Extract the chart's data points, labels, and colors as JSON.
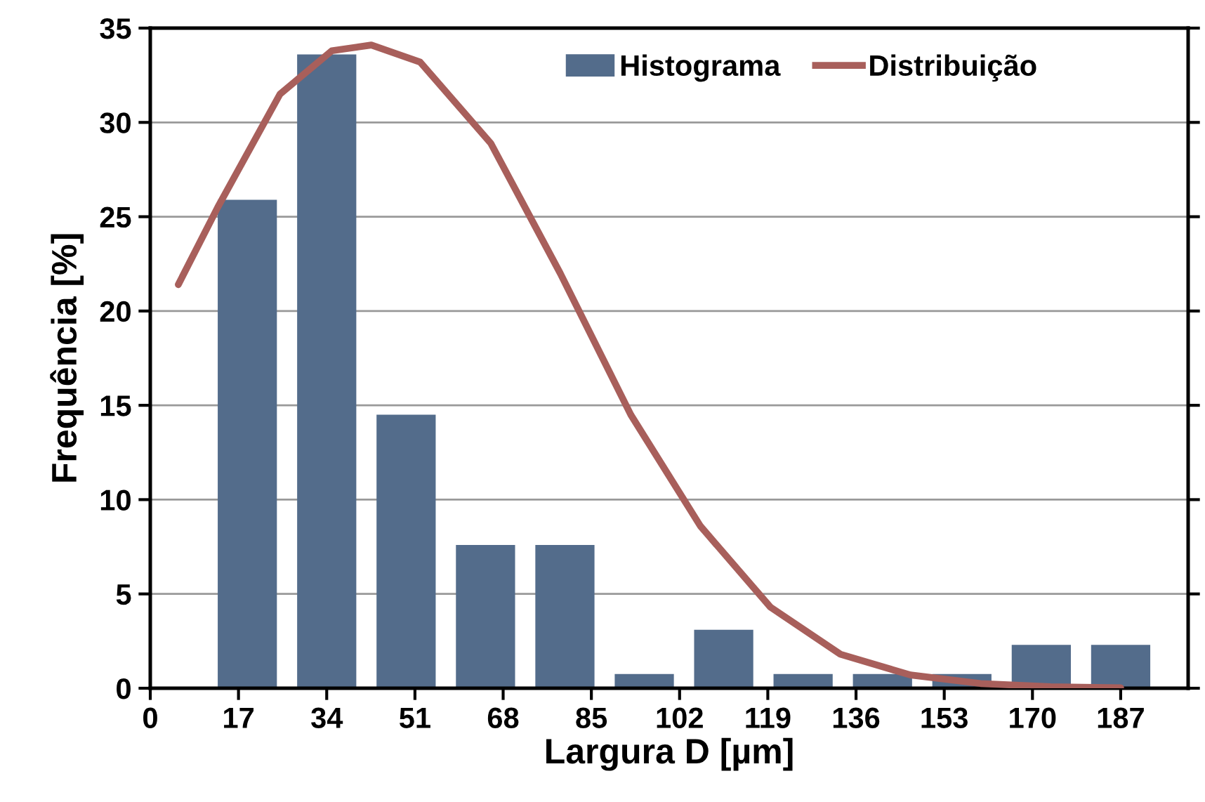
{
  "chart_data": {
    "type": "bar",
    "xlabel": "Largura D [µm]",
    "ylabel": "Frequência [%]",
    "x": [
      18.7,
      34.0,
      49.3,
      64.6,
      79.9,
      95.2,
      110.5,
      125.8,
      141.1,
      156.4,
      171.7,
      187.0
    ],
    "series": [
      {
        "name": "Histograma",
        "color": "#536c8b",
        "values": [
          25.9,
          33.6,
          14.5,
          7.6,
          7.6,
          0.75,
          3.1,
          0.75,
          0.75,
          0.75,
          2.3,
          2.3
        ]
      },
      {
        "name": "Distribuição",
        "type": "line",
        "color": "#a85f5b",
        "x": [
          5.4,
          13,
          25,
          35,
          42.6,
          52,
          65.6,
          79,
          92.6,
          106,
          119.5,
          133,
          146.5,
          160,
          173.5,
          187
        ],
        "values": [
          21.4,
          25.5,
          31.5,
          33.8,
          34.1,
          33.2,
          28.9,
          22,
          14.5,
          8.6,
          4.3,
          1.8,
          0.7,
          0.25,
          0.08,
          0.02
        ]
      }
    ],
    "xlim": [
      0,
      200
    ],
    "xticks": [
      0,
      17,
      34,
      51,
      68,
      85,
      102,
      119,
      136,
      153,
      170,
      187
    ],
    "ylim": [
      0,
      35
    ],
    "yticks": [
      0,
      5,
      10,
      15,
      20,
      25,
      30,
      35
    ],
    "grid": "y",
    "legend": "top right",
    "marker": "none",
    "line_style": "solid"
  }
}
